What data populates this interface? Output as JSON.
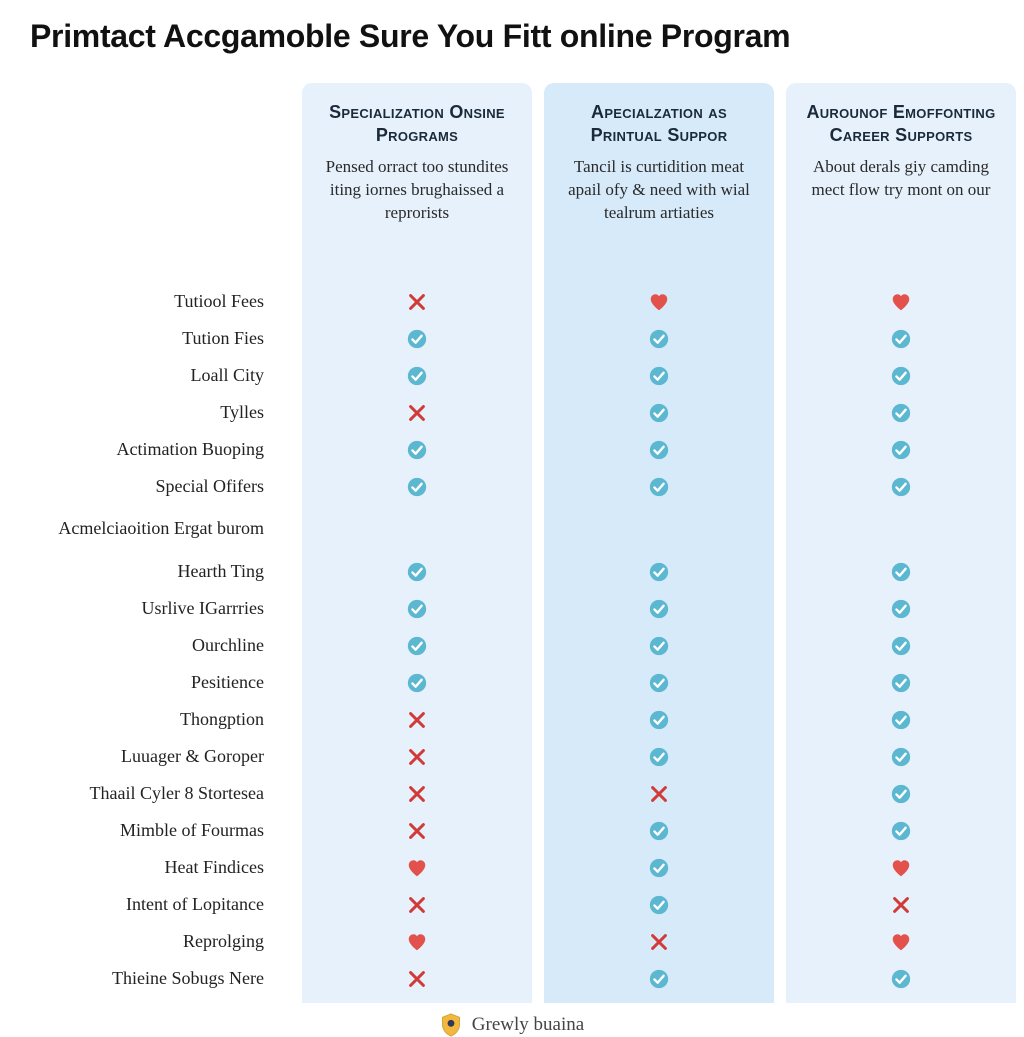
{
  "title": "Primtact Accgamoble Sure You Fitt online Program",
  "colors": {
    "page_bg": "#ffffff",
    "col_bg_1": "#e6f1fb",
    "col_bg_2": "#d7eafa",
    "col_bg_3": "#e6f1fb",
    "check_fill": "#5cb7d1",
    "check_stroke": "#ffffff",
    "cross": "#d13a36",
    "heart": "#e2514b",
    "text": "#222222",
    "head_text": "#1a2a3a",
    "shield_body": "#f3b73e",
    "shield_border": "#caa338",
    "shield_inner": "#2f3a55"
  },
  "columns": [
    {
      "title": "Specialization Onsine Programs",
      "desc": "Pensed orract too stundites iting iornes brughaissed a reprorists"
    },
    {
      "title": "Apecialzation as Printual Suppor",
      "desc": "Tancil is curtidition meat apail ofy & need with wial tealrum artiaties"
    },
    {
      "title": "Aurounof Emoffonting Career Supports",
      "desc": "About derals giy camding mect flow try mont on our"
    }
  ],
  "rows": [
    {
      "label": "Tutiool Fees",
      "height": "one"
    },
    {
      "label": "Tution Fies",
      "height": "one"
    },
    {
      "label": "Loall City",
      "height": "one"
    },
    {
      "label": "Tylles",
      "height": "one"
    },
    {
      "label": "Actimation Buoping",
      "height": "one"
    },
    {
      "label": "Special Ofifers",
      "height": "one"
    },
    {
      "label": "Acmelciaoition Ergat burom",
      "height": "two"
    },
    {
      "label": "Hearth Ting",
      "height": "one"
    },
    {
      "label": "Usrlive IGarrries",
      "height": "one"
    },
    {
      "label": "Ourchline",
      "height": "one"
    },
    {
      "label": "Pesitience",
      "height": "one"
    },
    {
      "label": "Thongption",
      "height": "one"
    },
    {
      "label": "Luuager & Goroper",
      "height": "one"
    },
    {
      "label": "Thaail Cyler 8 Stortesea",
      "height": "one"
    },
    {
      "label": "Mimble of Fourmas",
      "height": "one"
    },
    {
      "label": "Heat Findices",
      "height": "one"
    },
    {
      "label": "Intent of Lopitance",
      "height": "one"
    },
    {
      "label": "Reprolging",
      "height": "one"
    },
    {
      "label": "Thieine Sobugs Nere",
      "height": "one"
    }
  ],
  "cells": [
    [
      "cross",
      "heart",
      "heart"
    ],
    [
      "check",
      "check",
      "check"
    ],
    [
      "check",
      "check",
      "check"
    ],
    [
      "cross",
      "check",
      "check"
    ],
    [
      "check",
      "check",
      "check"
    ],
    [
      "check",
      "check",
      "check"
    ],
    [
      "",
      "",
      ""
    ],
    [
      "check",
      "check",
      "check"
    ],
    [
      "check",
      "check",
      "check"
    ],
    [
      "check",
      "check",
      "check"
    ],
    [
      "check",
      "check",
      "check"
    ],
    [
      "cross",
      "check",
      "check"
    ],
    [
      "cross",
      "check",
      "check"
    ],
    [
      "cross",
      "cross",
      "check"
    ],
    [
      "cross",
      "check",
      "check"
    ],
    [
      "heart",
      "check",
      "heart"
    ],
    [
      "cross",
      "check",
      "cross"
    ],
    [
      "heart",
      "cross",
      "heart"
    ],
    [
      "cross",
      "check",
      "check"
    ]
  ],
  "footer": "Grewly buaina"
}
